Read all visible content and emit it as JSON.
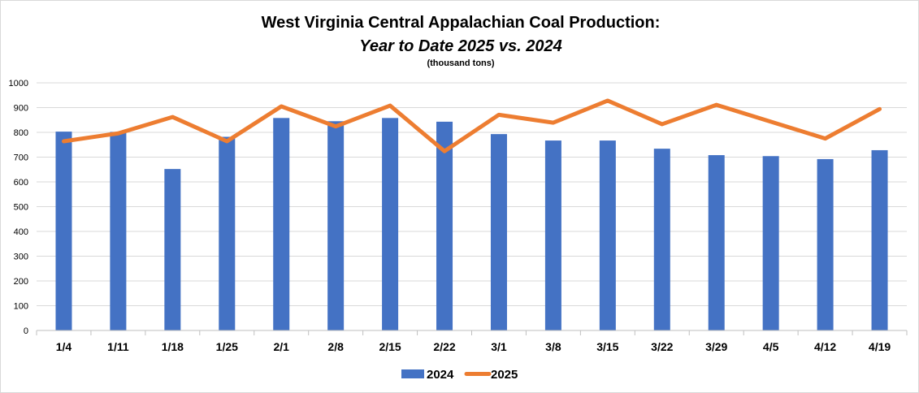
{
  "chart_data": {
    "type": "bar",
    "title": "West Virginia Central Appalachian Coal Production:",
    "subtitle": "Year to Date 2025 vs. 2024",
    "units_note": "(thousand tons)",
    "categories": [
      "1/4",
      "1/11",
      "1/18",
      "1/25",
      "2/1",
      "2/8",
      "2/15",
      "2/22",
      "3/1",
      "3/8",
      "3/15",
      "3/22",
      "3/29",
      "4/5",
      "4/12",
      "4/19"
    ],
    "ylim": [
      0,
      1000
    ],
    "yticks": [
      0,
      100,
      200,
      300,
      400,
      500,
      600,
      700,
      800,
      900,
      1000
    ],
    "grid": true,
    "legend_position": "bottom",
    "series": [
      {
        "name": "2024",
        "type": "bar",
        "color": "#4472c4",
        "values": [
          803,
          802,
          652,
          782,
          858,
          845,
          858,
          843,
          793,
          767,
          767,
          734,
          708,
          704,
          692,
          728
        ]
      },
      {
        "name": "2025",
        "type": "line",
        "color": "#ed7d31",
        "values": [
          764,
          796,
          862,
          764,
          905,
          824,
          908,
          724,
          871,
          839,
          928,
          833,
          911,
          843,
          775,
          894
        ]
      }
    ]
  }
}
